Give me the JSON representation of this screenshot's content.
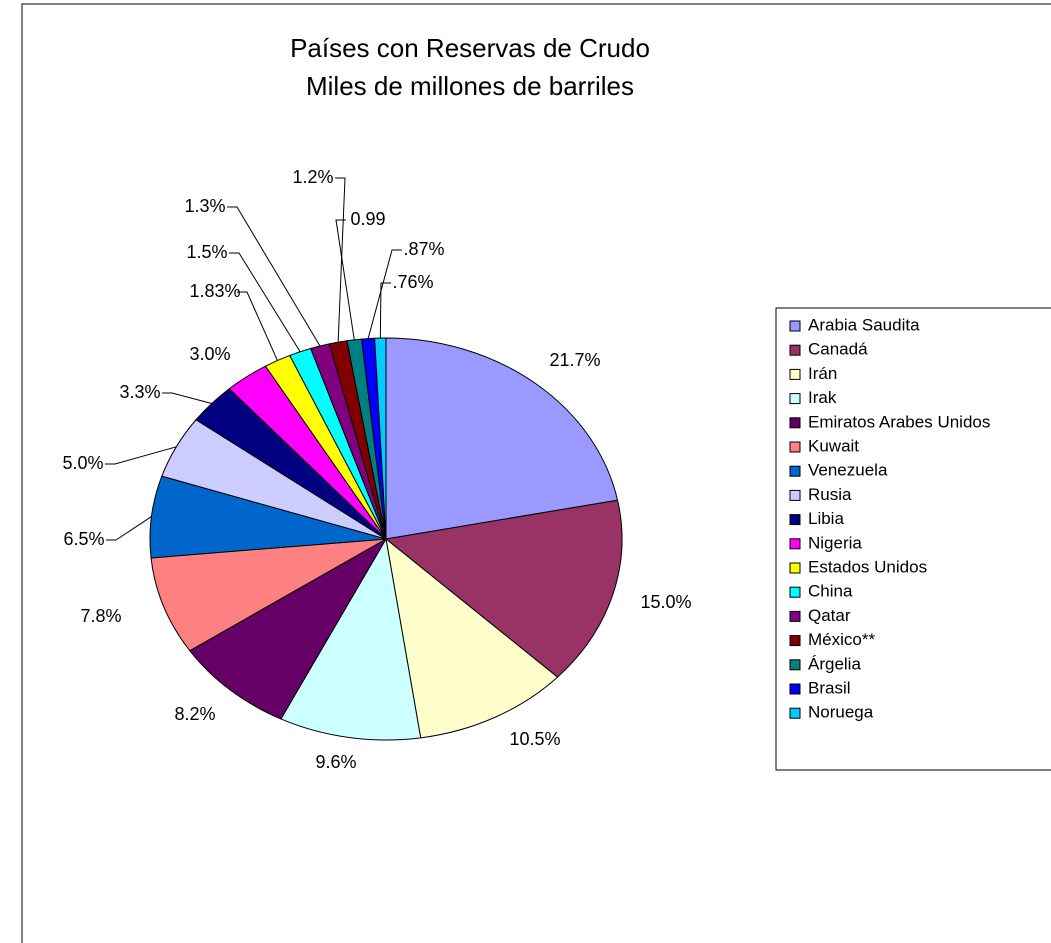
{
  "chart_data": {
    "type": "pie",
    "title": "Países con Reservas de Crudo",
    "subtitle": "Miles de millones de barriles",
    "categories": [
      "Arabia Saudita",
      "Canadá",
      "Irán",
      "Irak",
      "Emiratos Arabes Unidos",
      "Kuwait",
      "Venezuela",
      "Rusia",
      "Libia",
      "Nigeria",
      "Estados Unidos",
      "China",
      "Qatar",
      "México**",
      "Árgelia",
      "Brasil",
      "Noruega"
    ],
    "values": [
      21.7,
      15.0,
      10.5,
      9.6,
      8.2,
      7.8,
      6.5,
      5.0,
      3.3,
      3.0,
      1.83,
      1.5,
      1.3,
      1.2,
      0.99,
      0.87,
      0.76
    ],
    "value_labels": [
      "21.7%",
      "15.0%",
      "10.5%",
      "9.6%",
      "8.2%",
      "7.8%",
      "6.5%",
      "5.0%",
      "3.3%",
      "3.0%",
      "1.83%",
      "1.5%",
      "1.3%",
      "1.2%",
      "0.99",
      ".87%",
      ".76%"
    ],
    "colors": [
      "#9999ff",
      "#993366",
      "#ffffcc",
      "#ccffff",
      "#660066",
      "#ff8080",
      "#0066cc",
      "#ccccff",
      "#000080",
      "#ff00ff",
      "#ffff00",
      "#00ffff",
      "#800080",
      "#800000",
      "#008080",
      "#0000ff",
      "#00ccff"
    ],
    "legend": "right"
  }
}
